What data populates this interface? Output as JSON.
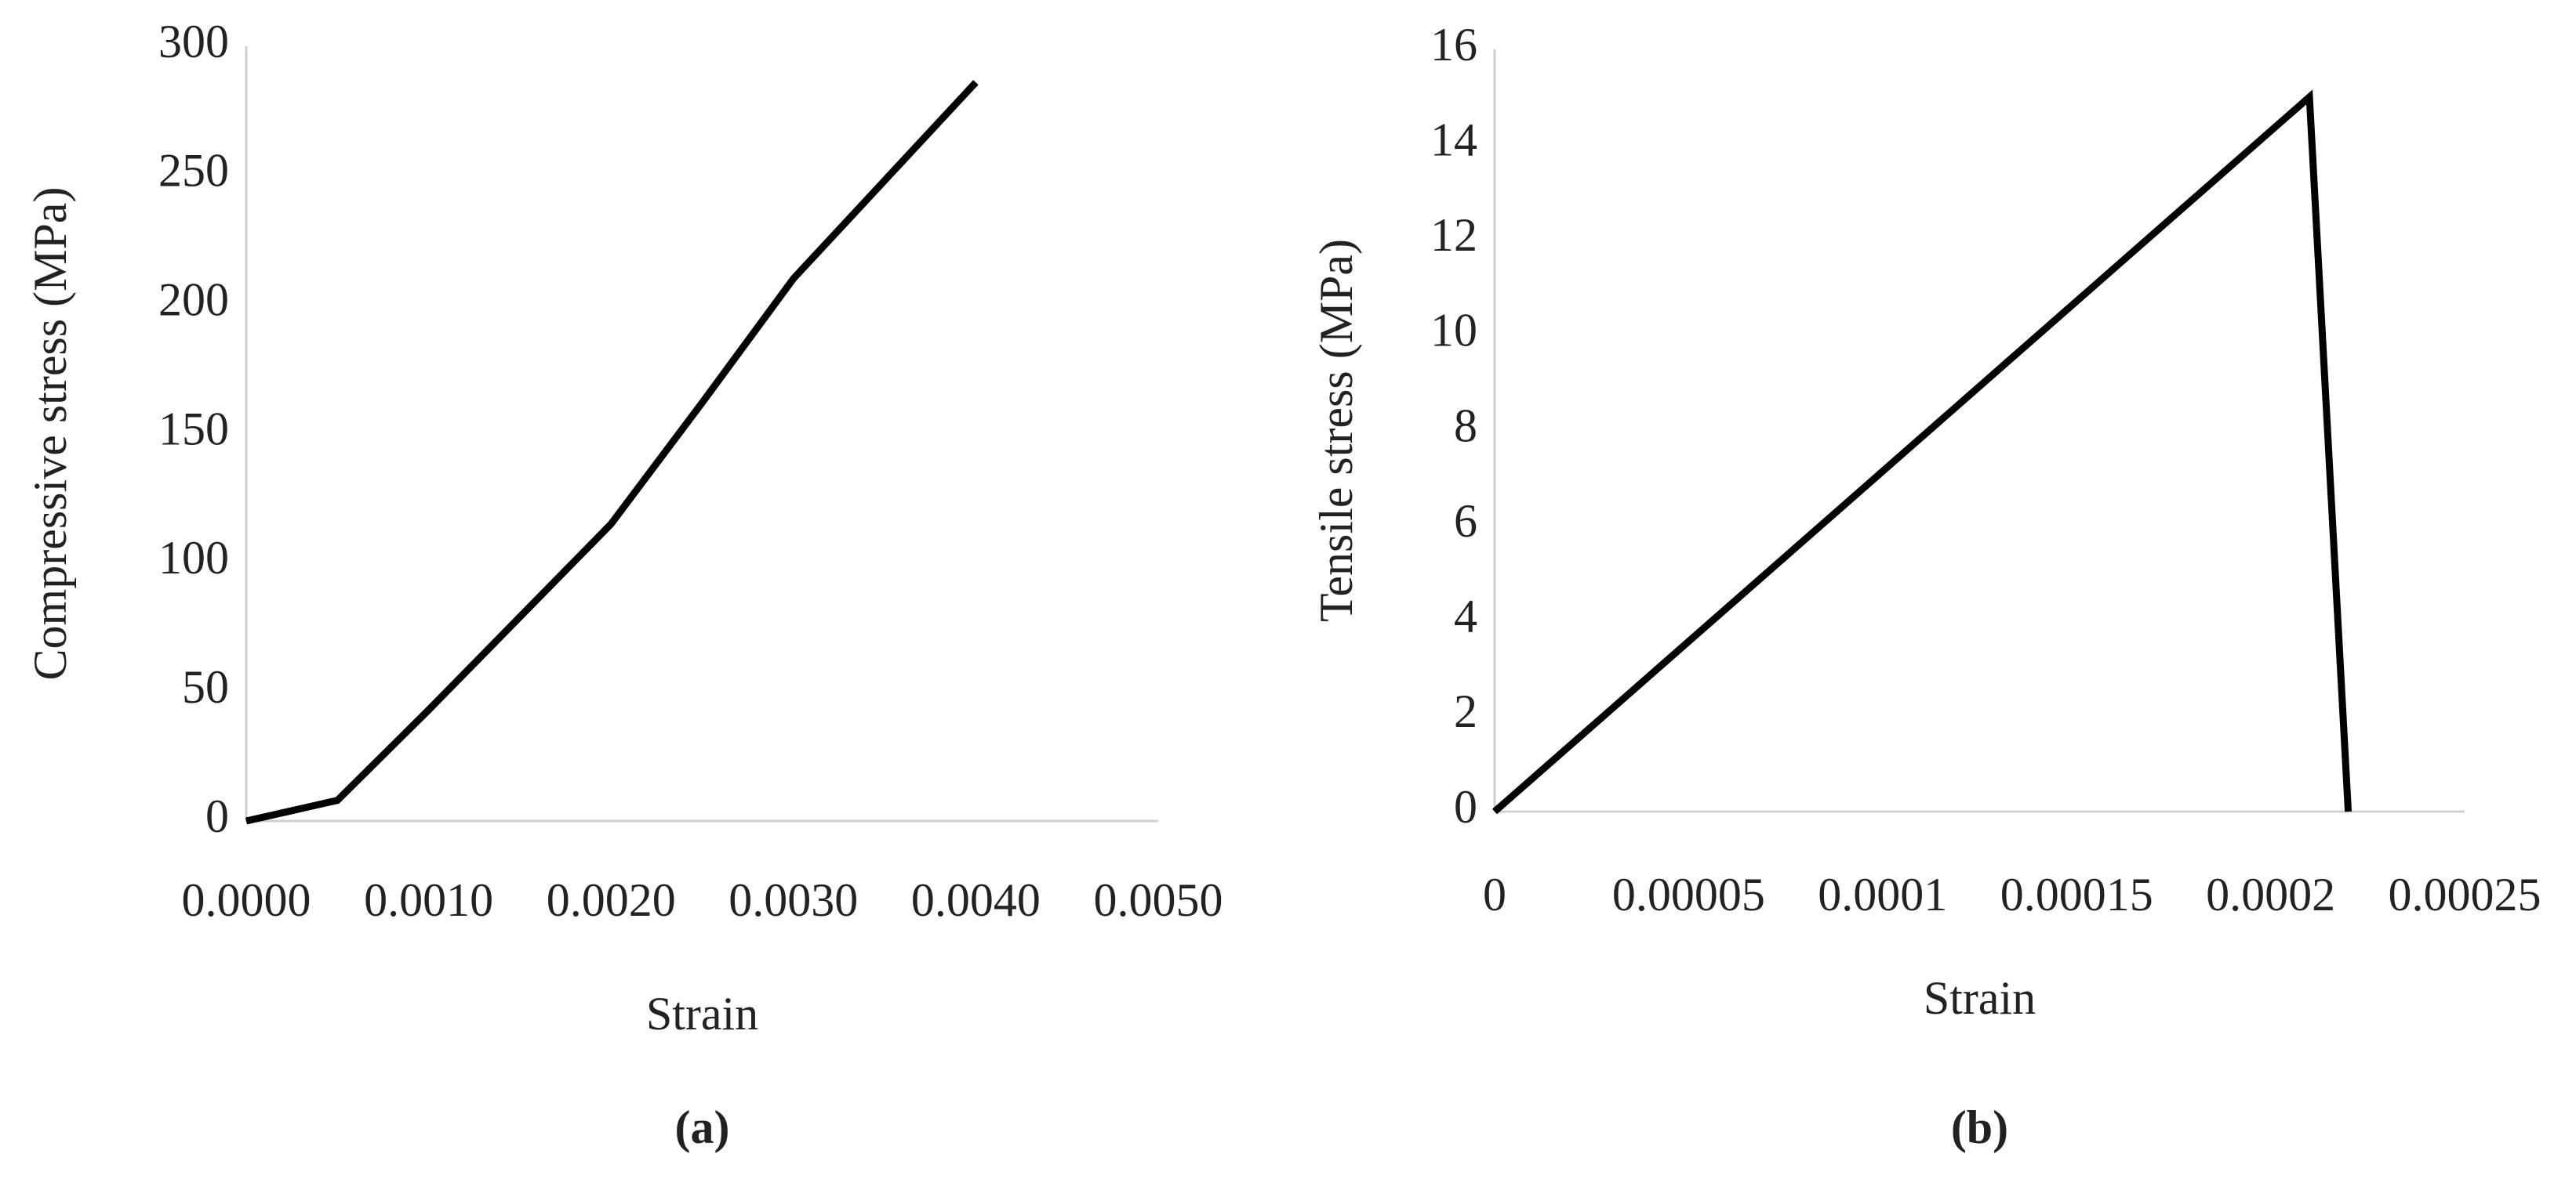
{
  "chart_data": [
    {
      "type": "line",
      "caption": "(a)",
      "x_label": "Strain",
      "y_label": "Compressive stress (MPa)",
      "x": [
        0,
        0.0005,
        0.001,
        0.0015,
        0.002,
        0.0025,
        0.003,
        0.0035,
        0.004
      ],
      "series": [
        {
          "color": "#000000",
          "values": [
            0,
            8,
            43,
            79,
            115,
            162,
            210,
            248,
            286
          ]
        }
      ],
      "xlim": [
        0,
        0.005
      ],
      "xticks": [
        {
          "value": 0,
          "label": "0.0000"
        },
        {
          "value": 0.001,
          "label": "0.0010"
        },
        {
          "value": 0.002,
          "label": "0.0020"
        },
        {
          "value": 0.003,
          "label": "0.0030"
        },
        {
          "value": 0.004,
          "label": "0.0040"
        },
        {
          "value": 0.005,
          "label": "0.0050"
        }
      ],
      "ylim": [
        0,
        300
      ],
      "yticks": [
        0,
        50,
        100,
        150,
        200,
        250,
        300
      ],
      "grid": false
    },
    {
      "type": "line",
      "caption": "(b)",
      "x_label": "Strain",
      "y_label": "Tensile stress (MPa)",
      "x": [
        0,
        0.00021,
        0.00022
      ],
      "series": [
        {
          "color": "#000000",
          "values": [
            0,
            15,
            0
          ]
        }
      ],
      "xlim": [
        0,
        0.00025
      ],
      "xticks": [
        0,
        5e-05,
        0.0001,
        0.00015,
        0.0002,
        0.00025
      ],
      "ylim": [
        0,
        16
      ],
      "yticks": [
        0,
        2,
        4,
        6,
        8,
        10,
        12,
        14,
        16
      ],
      "grid": false
    }
  ]
}
